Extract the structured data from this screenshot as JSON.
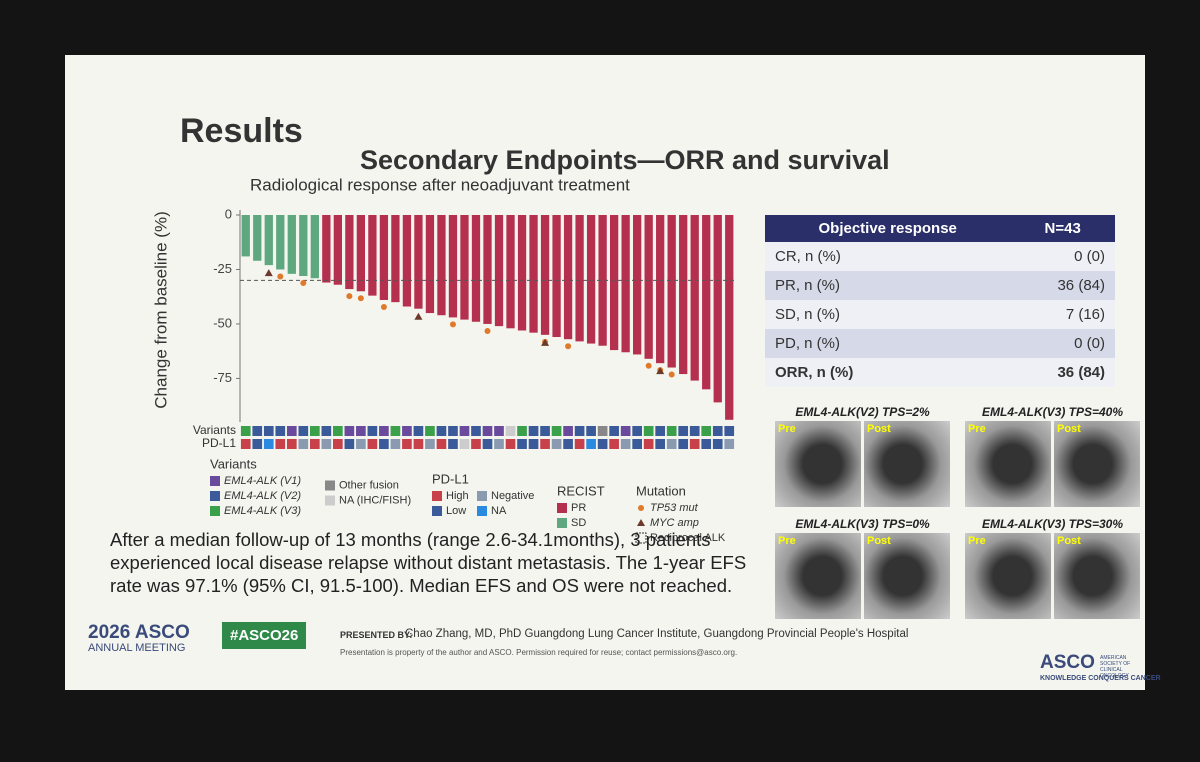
{
  "header": {
    "title": "Results",
    "subtitle": "Secondary Endpoints—ORR and survival"
  },
  "chart_data": {
    "type": "bar",
    "title": "Radiological response after neoadjuvant treatment",
    "y_label": "Change from baseline (%)",
    "categories": [
      null,
      null,
      null,
      null,
      null,
      null,
      null,
      null,
      null,
      null,
      null,
      null,
      null,
      null,
      null,
      null,
      null,
      null,
      null,
      null,
      null,
      null,
      null,
      null,
      null,
      null,
      null,
      null,
      null,
      null,
      null,
      null,
      null,
      null,
      null,
      null,
      null,
      null,
      null,
      null,
      null,
      null,
      null
    ],
    "values": [
      -19,
      -21,
      -23,
      -25,
      -27,
      -28,
      -29,
      -31,
      -32,
      -34,
      -35,
      -37,
      -39,
      -40,
      -42,
      -43,
      -45,
      -46,
      -47,
      -48,
      -49,
      -50,
      -51,
      -52,
      -53,
      -54,
      -55,
      -56,
      -57,
      -58,
      -59,
      -60,
      -62,
      -63,
      -64,
      -66,
      -68,
      -70,
      -73,
      -76,
      -80,
      -86,
      -94
    ],
    "recist": [
      "SD",
      "SD",
      "SD",
      "SD",
      "SD",
      "SD",
      "SD",
      "PR",
      "PR",
      "PR",
      "PR",
      "PR",
      "PR",
      "PR",
      "PR",
      "PR",
      "PR",
      "PR",
      "PR",
      "PR",
      "PR",
      "PR",
      "PR",
      "PR",
      "PR",
      "PR",
      "PR",
      "PR",
      "PR",
      "PR",
      "PR",
      "PR",
      "PR",
      "PR",
      "PR",
      "PR",
      "PR",
      "PR",
      "PR",
      "PR",
      "PR",
      "PR",
      "PR"
    ],
    "ylim": [
      -95,
      0
    ],
    "yticks": [
      0,
      -25,
      -50,
      -75
    ],
    "reference_line": -30,
    "tp53_bars": [
      3,
      5,
      9,
      10,
      12,
      18,
      21,
      26,
      28,
      35,
      36,
      37
    ],
    "myc_bars": [
      2,
      15,
      26,
      36
    ],
    "strip_labels": [
      "Variants",
      "PD-L1"
    ],
    "variant_strip": [
      "#3aa04a",
      "#3a5a9a",
      "#3a5a9a",
      "#3a5a9a",
      "#6a4a9c",
      "#3a5a9a",
      "#3aa04a",
      "#3a5a9a",
      "#3aa04a",
      "#6a4a9c",
      "#6a4a9c",
      "#3a5a9a",
      "#6a4a9c",
      "#3aa04a",
      "#6a4a9c",
      "#3a5a9a",
      "#3aa04a",
      "#3a5a9a",
      "#3a5a9a",
      "#6a4a9c",
      "#3a5a9a",
      "#6a4a9c",
      "#6a4a9c",
      "#cccccc",
      "#3aa04a",
      "#3a5a9a",
      "#3a5a9a",
      "#3aa04a",
      "#6a4a9c",
      "#3a5a9a",
      "#3a5a9a",
      "#888888",
      "#3a5a9a",
      "#6a4a9c",
      "#3a5a9a",
      "#3aa04a",
      "#3a5a9a",
      "#3aa04a",
      "#3a5a9a",
      "#3a5a9a",
      "#3aa04a",
      "#3a5a9a",
      "#3a5a9a"
    ],
    "pdl1_strip": [
      "#c8404a",
      "#3a5a9a",
      "#2a8ae0",
      "#c8404a",
      "#c8404a",
      "#8a9ab0",
      "#c8404a",
      "#8a9ab0",
      "#c8404a",
      "#3a5a9a",
      "#8a9ab0",
      "#c8404a",
      "#3a5a9a",
      "#8a9ab0",
      "#c8404a",
      "#c8404a",
      "#8a9ab0",
      "#c8404a",
      "#3a5a9a",
      "#cccccc",
      "#c8404a",
      "#3a5a9a",
      "#8a9ab0",
      "#c8404a",
      "#3a5a9a",
      "#3a5a9a",
      "#c8404a",
      "#8a9ab0",
      "#3a5a9a",
      "#c8404a",
      "#2a8ae0",
      "#3a5a9a",
      "#c8404a",
      "#8a9ab0",
      "#3a5a9a",
      "#c8404a",
      "#3a5a9a",
      "#8a9ab0",
      "#3a5a9a",
      "#c8404a",
      "#3a5a9a",
      "#3a5a9a",
      "#8a9ab0"
    ],
    "legend": {
      "variants": {
        "title": "Variants",
        "items": [
          {
            "label": "EML4-ALK (V1)",
            "color": "#6a4a9c"
          },
          {
            "label": "EML4-ALK (V2)",
            "color": "#3a5a9a"
          },
          {
            "label": "EML4-ALK (V3)",
            "color": "#3aa04a"
          },
          {
            "label": "Other fusion",
            "color": "#888888"
          },
          {
            "label": "NA (IHC/FISH)",
            "color": "#cccccc"
          }
        ]
      },
      "pdl1": {
        "title": "PD-L1",
        "items": [
          {
            "label": "High",
            "color": "#c8404a"
          },
          {
            "label": "Low",
            "color": "#3a5a9a"
          },
          {
            "label": "Negative",
            "color": "#8a9ab0"
          },
          {
            "label": "NA",
            "color": "#2a8ae0"
          }
        ]
      },
      "recist": {
        "title": "RECIST",
        "items": [
          {
            "label": "PR",
            "color": "#b5304f"
          },
          {
            "label": "SD",
            "color": "#5ea77f"
          }
        ]
      },
      "mutation": {
        "title": "Mutation",
        "items": [
          {
            "label": "TP53 mut",
            "color": "#e07a2a"
          },
          {
            "label": "MYC amp",
            "color": "#6b3a2a"
          },
          {
            "label": "Reciprocal ALK",
            "color": "#333333"
          }
        ]
      }
    }
  },
  "table": {
    "header": [
      "Objective response",
      "N=43"
    ],
    "rows": [
      [
        "CR, n (%)",
        "0 (0)"
      ],
      [
        "PR, n (%)",
        "36 (84)"
      ],
      [
        "SD, n (%)",
        "7 (16)"
      ],
      [
        "PD, n (%)",
        "0 (0)"
      ],
      [
        "ORR, n (%)",
        "36 (84)"
      ]
    ]
  },
  "images": [
    {
      "title": "EML4-ALK(V2) TPS=2%",
      "pre": "Pre",
      "post": "Post"
    },
    {
      "title": "EML4-ALK(V3) TPS=40%",
      "pre": "Pre",
      "post": "Post"
    },
    {
      "title": "EML4-ALK(V3) TPS=0%",
      "pre": "Pre",
      "post": "Post"
    },
    {
      "title": "EML4-ALK(V3) TPS=30%",
      "pre": "Pre",
      "post": "Post"
    }
  ],
  "summary": "After a median follow-up of 13 months (range 2.6-34.1months), 3 patients experienced local disease relapse without distant metastasis. The 1-year EFS rate was 97.1% (95% CI, 91.5-100). Median EFS and OS were not reached.",
  "footer": {
    "meeting_year": "2026 ASCO",
    "meeting": "ANNUAL MEETING",
    "hashtag": "#ASCO26",
    "presented_by": "PRESENTED BY:",
    "presenter": "Chao Zhang, MD, PhD   Guangdong Lung Cancer Institute, Guangdong Provincial People's Hospital",
    "disclaimer": "Presentation is property of the author and ASCO. Permission required for reuse; contact permissions@asco.org.",
    "logo": "ASCO",
    "society": "AMERICAN SOCIETY OF CLINICAL ONCOLOGY",
    "tagline": "KNOWLEDGE CONQUERS CANCER"
  }
}
